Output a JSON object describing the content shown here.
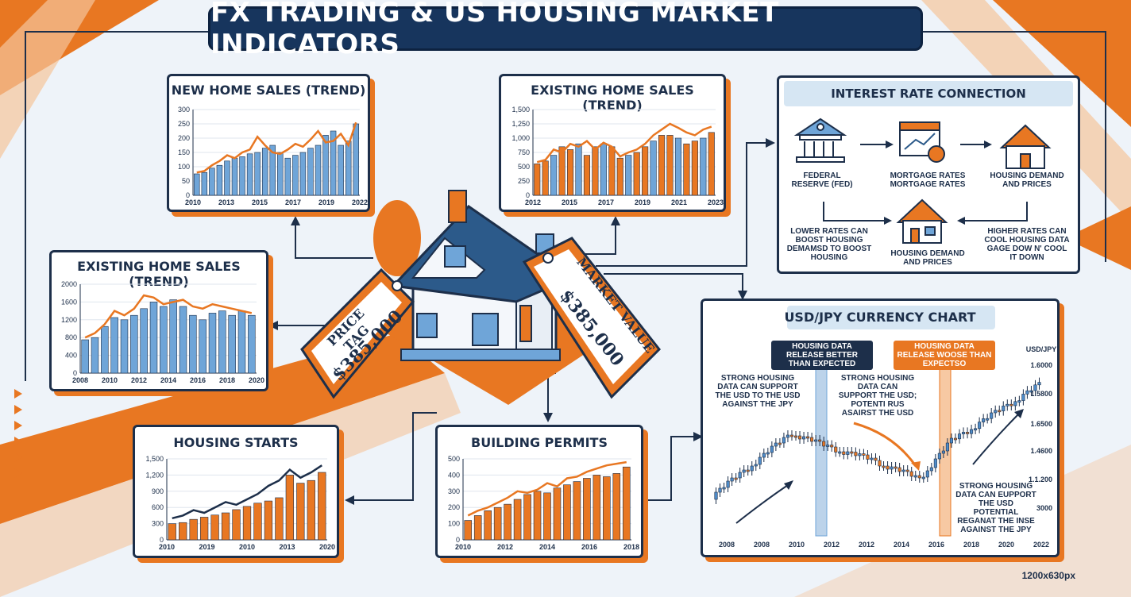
{
  "title": "FX TRADING & US HOUSING MARKET INDICATORS",
  "footer": "1200x630px",
  "house": {
    "price_tag_label": "PRICE TAG",
    "price_tag_value": "$385,000",
    "market_tag_label": "MARKET VALUE",
    "market_tag_value": "$385,000"
  },
  "interest": {
    "title": "INTEREST RATE CONNECTION",
    "fed": "FEDERAL RESERVE (FED)",
    "mortgage": "MORTGAGE RATES MORTGAGE RATES",
    "demand_top": "HOUSING DEMAND AND PRICES",
    "demand_bottom": "HOUSING DEMAND AND PRICES",
    "lower": "LOWER RATES CAN BOOST HOUSING DEMAMSD TO BOOST HOUSING",
    "higher": "HIGHER RATES CAN COOL HOUSING DATA GAGE DOW N' COOL IT DOWN"
  },
  "usdjpy": {
    "title": "USD/JPY CURRENCY CHART",
    "axis_label": "USD/JPY",
    "label_better": "HOUSING DATA RELEASE BETTER THAN EXPECTED",
    "label_worse": "HOUSING DATA RELEASE WOOSE THAN EXPECTSO",
    "note_left": "STRONG HOUSING DATA CAN SUPPORT THE USD TO THE USD AGAINST THE JPY",
    "note_mid": "STRONG HOUSING DATA CAN SUPPORT THE USD; POTENTI RUS ASAIRST THE USD",
    "note_right": "STRONG HOUSING DATA CAN EUPPORT THE USD POTENTIAL REGANAT THE INSE AGAINST THE JPY",
    "y_ticks": [
      "1.6000",
      "1.5800",
      "1.6500",
      "1.4600",
      "1.1.200",
      "1.3000"
    ],
    "x_ticks": [
      "2008",
      "2008",
      "2010",
      "2012",
      "2012",
      "2014",
      "2016",
      "2018",
      "2020",
      "2022"
    ]
  },
  "chart_data": [
    {
      "type": "bar",
      "title": "NEW HOME SALES (TREND)",
      "bar_color": "#6fa5d8",
      "line_color": "#e87722",
      "ylim": [
        0,
        300
      ],
      "y_ticks": [
        0,
        50,
        100,
        150,
        200,
        250,
        300
      ],
      "x_ticks": [
        "2010",
        "2013",
        "2015",
        "2017",
        "2019",
        "2022"
      ],
      "values": [
        75,
        80,
        95,
        105,
        120,
        130,
        135,
        145,
        150,
        165,
        175,
        150,
        130,
        140,
        150,
        165,
        175,
        210,
        225,
        175,
        190,
        250
      ],
      "trend": [
        80,
        85,
        105,
        120,
        140,
        130,
        150,
        160,
        205,
        175,
        150,
        145,
        160,
        180,
        170,
        195,
        225,
        185,
        190,
        215,
        175,
        255
      ]
    },
    {
      "type": "bar",
      "title": "EXISTING HOME SALES (TREND)",
      "bar_color": "#e87722",
      "bar_color_alt": "#6fa5d8",
      "line_color": "#e87722",
      "ylim": [
        0,
        1500
      ],
      "y_ticks": [
        "0",
        "250",
        "500",
        "750",
        "1,000",
        "1,250",
        "1,500"
      ],
      "x_ticks": [
        "2012",
        "2015",
        "2017",
        "2019",
        "2021",
        "2023"
      ],
      "values": [
        550,
        600,
        700,
        850,
        800,
        900,
        700,
        850,
        900,
        850,
        650,
        700,
        750,
        850,
        950,
        1050,
        1050,
        1000,
        900,
        950,
        1000,
        1100
      ],
      "trend": [
        580,
        620,
        800,
        750,
        900,
        850,
        950,
        800,
        920,
        850,
        680,
        750,
        800,
        900,
        1050,
        1150,
        1250,
        1180,
        1100,
        1050,
        1150,
        1200
      ]
    },
    {
      "type": "bar",
      "title": "EXISTING HOME SALES (TREND)",
      "bar_color": "#6fa5d8",
      "line_color": "#e87722",
      "ylim": [
        0,
        2000
      ],
      "y_ticks": [
        0,
        400,
        800,
        1200,
        1600,
        2000
      ],
      "x_ticks": [
        "2008",
        "2010",
        "2012",
        "2014",
        "2016",
        "2018",
        "2020"
      ],
      "values": [
        750,
        800,
        1050,
        1250,
        1200,
        1300,
        1450,
        1600,
        1500,
        1650,
        1500,
        1300,
        1200,
        1350,
        1400,
        1300,
        1400,
        1300
      ],
      "trend": [
        800,
        900,
        1100,
        1400,
        1300,
        1450,
        1750,
        1700,
        1550,
        1600,
        1650,
        1500,
        1450,
        1550,
        1500,
        1450,
        1400,
        1350
      ]
    },
    {
      "type": "bar",
      "title": "HOUSING STARTS",
      "bar_color": "#e87722",
      "line_color": "#1d2f4a",
      "ylim": [
        0,
        1500
      ],
      "y_ticks": [
        "0",
        "300",
        "600",
        "900",
        "1,200",
        "1,500"
      ],
      "x_ticks": [
        "2010",
        "2019",
        "2010",
        "2013",
        "2020"
      ],
      "values": [
        300,
        320,
        380,
        420,
        460,
        500,
        560,
        620,
        680,
        720,
        780,
        1200,
        1050,
        1100,
        1250
      ],
      "trend": [
        400,
        450,
        550,
        500,
        600,
        700,
        650,
        750,
        850,
        1000,
        1100,
        1300,
        1150,
        1250,
        1380
      ]
    },
    {
      "type": "bar",
      "title": "BUILDING PERMITS",
      "bar_color": "#e87722",
      "line_color": "#e87722",
      "ylim": [
        0,
        500
      ],
      "y_ticks": [
        0,
        100,
        200,
        300,
        400,
        500
      ],
      "x_ticks": [
        "2010",
        "2012",
        "2014",
        "2016",
        "2018"
      ],
      "values": [
        120,
        150,
        180,
        200,
        220,
        250,
        280,
        300,
        290,
        320,
        340,
        360,
        380,
        400,
        390,
        410,
        450
      ],
      "trend": [
        150,
        180,
        200,
        230,
        260,
        300,
        290,
        310,
        350,
        330,
        380,
        390,
        420,
        440,
        460,
        470,
        480
      ]
    }
  ]
}
